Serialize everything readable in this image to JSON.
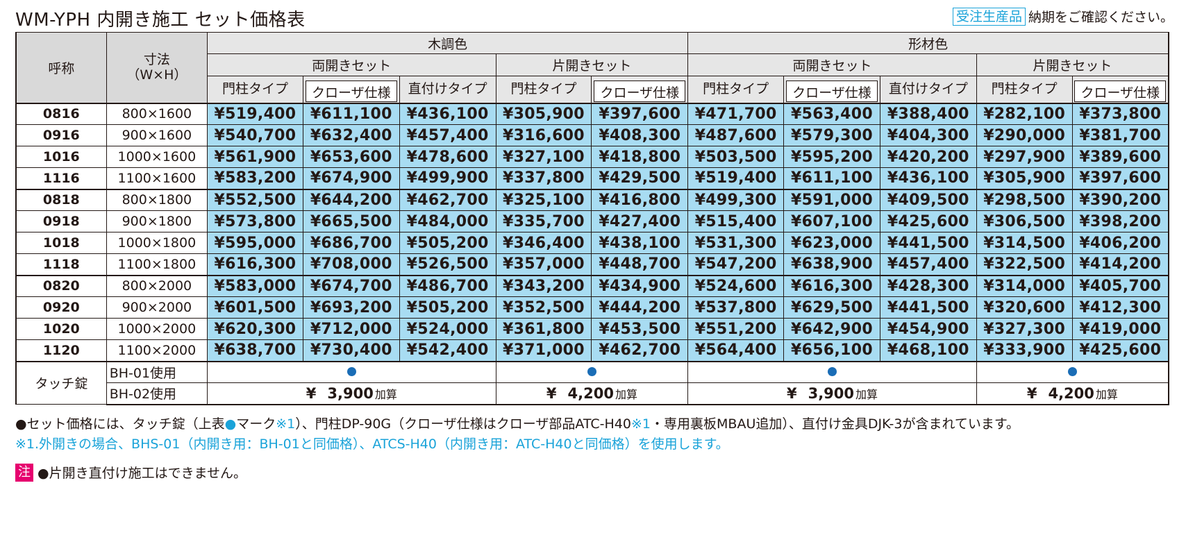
{
  "title": "WM-YPH 内開き施工 セット価格表",
  "header_note": {
    "badge": "受注生産品",
    "text": "納期をご確認ください。"
  },
  "table": {
    "col_name": "呼称",
    "col_size": "寸法\n（W×H）",
    "groups": [
      "木調色",
      "形材色"
    ],
    "subgroups": [
      "両開きセット",
      "片開きセット",
      "両開きセット",
      "片開きセット"
    ],
    "columns": [
      "門柱タイプ",
      "クローザ仕様",
      "直付けタイプ",
      "門柱タイプ",
      "クローザ仕様",
      "門柱タイプ",
      "クローザ仕様",
      "直付けタイプ",
      "門柱タイプ",
      "クローザ仕様"
    ],
    "rows": [
      {
        "code": "0816",
        "size": "800×1600",
        "prices": [
          "¥519,400",
          "¥611,100",
          "¥436,100",
          "¥305,900",
          "¥397,600",
          "¥471,700",
          "¥563,400",
          "¥388,400",
          "¥282,100",
          "¥373,800"
        ]
      },
      {
        "code": "0916",
        "size": "900×1600",
        "prices": [
          "¥540,700",
          "¥632,400",
          "¥457,400",
          "¥316,600",
          "¥408,300",
          "¥487,600",
          "¥579,300",
          "¥404,300",
          "¥290,000",
          "¥381,700"
        ]
      },
      {
        "code": "1016",
        "size": "1000×1600",
        "prices": [
          "¥561,900",
          "¥653,600",
          "¥478,600",
          "¥327,100",
          "¥418,800",
          "¥503,500",
          "¥595,200",
          "¥420,200",
          "¥297,900",
          "¥389,600"
        ]
      },
      {
        "code": "1116",
        "size": "1100×1600",
        "prices": [
          "¥583,200",
          "¥674,900",
          "¥499,900",
          "¥337,800",
          "¥429,500",
          "¥519,400",
          "¥611,100",
          "¥436,100",
          "¥305,900",
          "¥397,600"
        ]
      },
      {
        "code": "0818",
        "size": "800×1800",
        "prices": [
          "¥552,500",
          "¥644,200",
          "¥462,700",
          "¥325,100",
          "¥416,800",
          "¥499,300",
          "¥591,000",
          "¥409,500",
          "¥298,500",
          "¥390,200"
        ]
      },
      {
        "code": "0918",
        "size": "900×1800",
        "prices": [
          "¥573,800",
          "¥665,500",
          "¥484,000",
          "¥335,700",
          "¥427,400",
          "¥515,400",
          "¥607,100",
          "¥425,600",
          "¥306,500",
          "¥398,200"
        ]
      },
      {
        "code": "1018",
        "size": "1000×1800",
        "prices": [
          "¥595,000",
          "¥686,700",
          "¥505,200",
          "¥346,400",
          "¥438,100",
          "¥531,300",
          "¥623,000",
          "¥441,500",
          "¥314,500",
          "¥406,200"
        ]
      },
      {
        "code": "1118",
        "size": "1100×1800",
        "prices": [
          "¥616,300",
          "¥708,000",
          "¥526,500",
          "¥357,000",
          "¥448,700",
          "¥547,200",
          "¥638,900",
          "¥457,400",
          "¥322,500",
          "¥414,200"
        ]
      },
      {
        "code": "0820",
        "size": "800×2000",
        "prices": [
          "¥583,000",
          "¥674,700",
          "¥486,700",
          "¥343,200",
          "¥434,900",
          "¥524,600",
          "¥616,300",
          "¥428,300",
          "¥314,000",
          "¥405,700"
        ]
      },
      {
        "code": "0920",
        "size": "900×2000",
        "prices": [
          "¥601,500",
          "¥693,200",
          "¥505,200",
          "¥352,500",
          "¥444,200",
          "¥537,800",
          "¥629,500",
          "¥441,500",
          "¥320,600",
          "¥412,300"
        ]
      },
      {
        "code": "1020",
        "size": "1000×2000",
        "prices": [
          "¥620,300",
          "¥712,000",
          "¥524,000",
          "¥361,800",
          "¥453,500",
          "¥551,200",
          "¥642,900",
          "¥454,900",
          "¥327,300",
          "¥419,000"
        ]
      },
      {
        "code": "1120",
        "size": "1100×2000",
        "prices": [
          "¥638,700",
          "¥730,400",
          "¥542,400",
          "¥371,000",
          "¥462,700",
          "¥564,400",
          "¥656,100",
          "¥468,100",
          "¥333,900",
          "¥425,600"
        ]
      }
    ],
    "touch_lock": {
      "label": "タッチ錠",
      "bh01": "BH-01使用",
      "bh02": "BH-02使用",
      "add_yen": "¥",
      "add_suffix": "加算",
      "adds": [
        "3,900",
        "4,200",
        "3,900",
        "4,200"
      ]
    }
  },
  "footnotes": {
    "line1_a": "●セット価格には、タッチ錠（上表",
    "line1_dot": "●",
    "line1_b": "マーク",
    "line1_ref1": "※1",
    "line1_c": "）、門柱DP-90G（クローザ仕様はクローザ部品ATC-H40",
    "line1_ref2": "※1",
    "line1_d": "・専用裏板MBAU追加）、直付け金具DJK-3が含まれています。",
    "line2": "※1.外開きの場合、BHS-01（内開き用：BH-01と同価格）、ATCS-H40（内開き用：ATC-H40と同価格）を使用します。",
    "chu": "注",
    "line3": "●片開き直付け施工はできません。"
  },
  "colors": {
    "price_bg": "#a8dcf2",
    "accent_blue": "#1aa3d9",
    "dot_blue": "#1a6db6",
    "note_red": "#e6006f"
  }
}
